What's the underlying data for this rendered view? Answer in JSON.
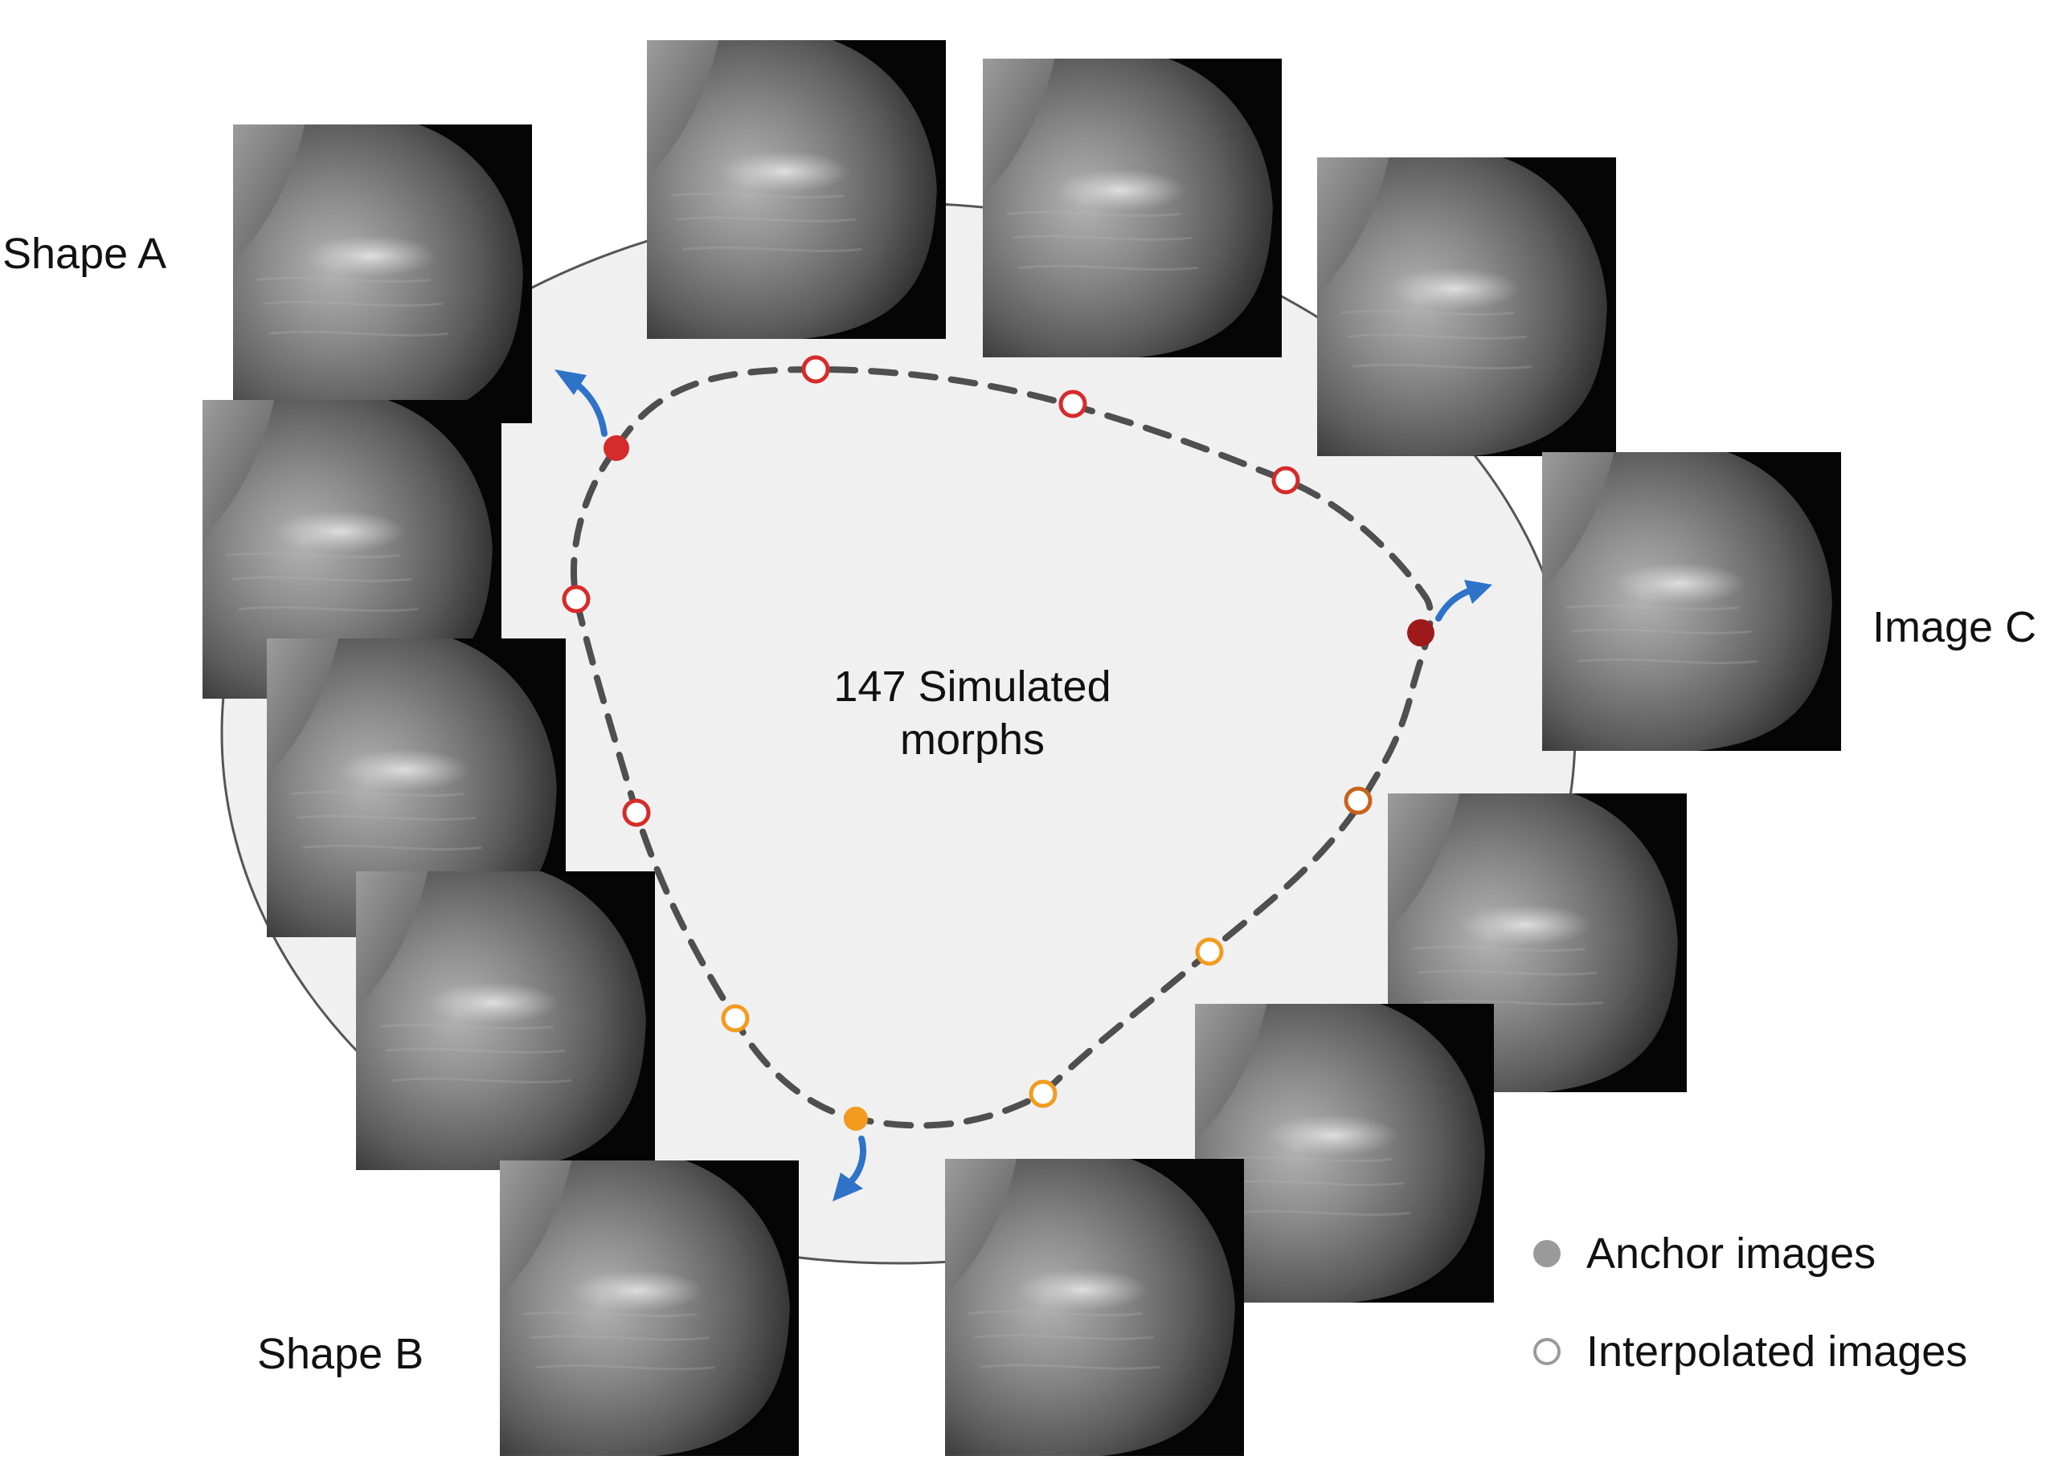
{
  "labels": {
    "shape_a": "Shape A",
    "shape_b": "Shape B",
    "image_c": "Image C",
    "center_line1": "147 Simulated",
    "center_line2": "morphs"
  },
  "legend": {
    "anchor": "Anchor images",
    "interpolated": "Interpolated images"
  },
  "colors": {
    "background_disc": "#f0f0f1",
    "curve": "#4f4f4f",
    "red_marker": "#d62b2b",
    "dark_red_anchor": "#9e1a1a",
    "orange_marker": "#f39b1f",
    "brown_orange_marker": "#c9631c",
    "arrow_blue": "#2f73c9",
    "legend_gray": "#9a9a9a"
  }
}
